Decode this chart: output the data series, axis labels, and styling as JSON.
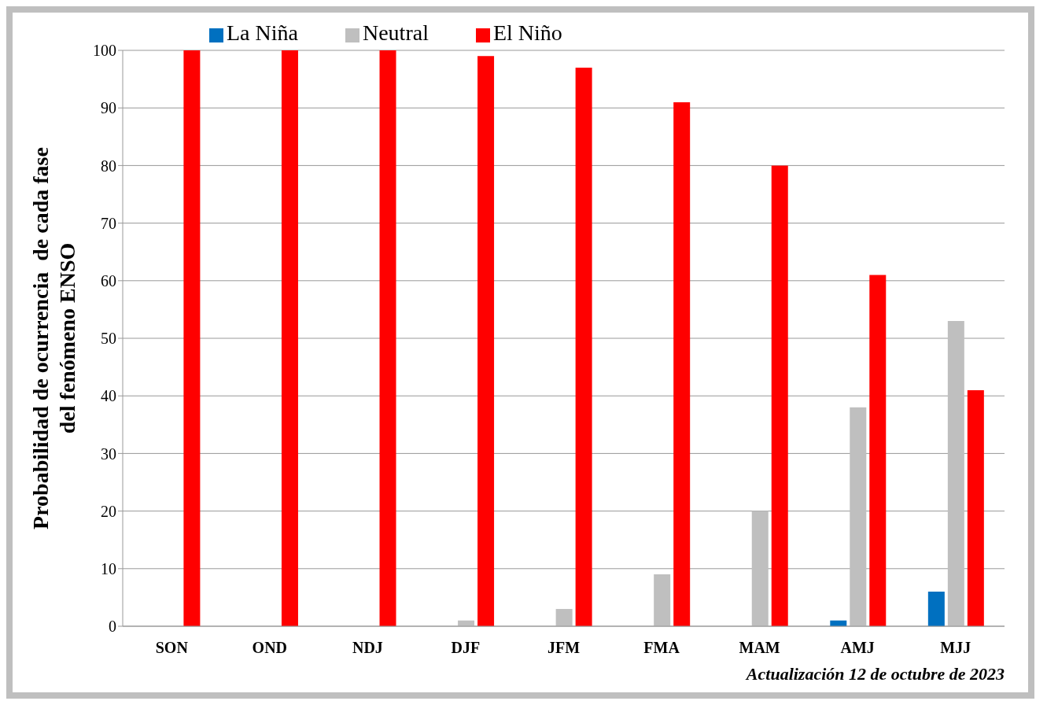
{
  "chart_data": {
    "type": "bar",
    "ylabel": "Probabilidad de ocurrencia  de cada fase\ndel fenómeno ENSO",
    "categories": [
      "SON",
      "OND",
      "NDJ",
      "DJF",
      "JFM",
      "FMA",
      "MAM",
      "AMJ",
      "MJJ"
    ],
    "series": [
      {
        "name": "La Niña",
        "color": "#0070c0",
        "values": [
          0,
          0,
          0,
          0,
          0,
          0,
          0,
          1,
          6
        ]
      },
      {
        "name": "Neutral",
        "color": "#bfbfbf",
        "values": [
          0,
          0,
          0,
          1,
          3,
          9,
          20,
          38,
          53
        ]
      },
      {
        "name": "El Niño",
        "color": "#ff0000",
        "values": [
          100,
          100,
          100,
          99,
          97,
          91,
          80,
          61,
          41
        ]
      }
    ],
    "ylim": [
      0,
      100
    ],
    "yticks": [
      0,
      10,
      20,
      30,
      40,
      50,
      60,
      70,
      80,
      90,
      100
    ],
    "grid": "y",
    "legend": "top left",
    "annotations": [
      "Actualización 12 de octubre de 2023"
    ]
  }
}
